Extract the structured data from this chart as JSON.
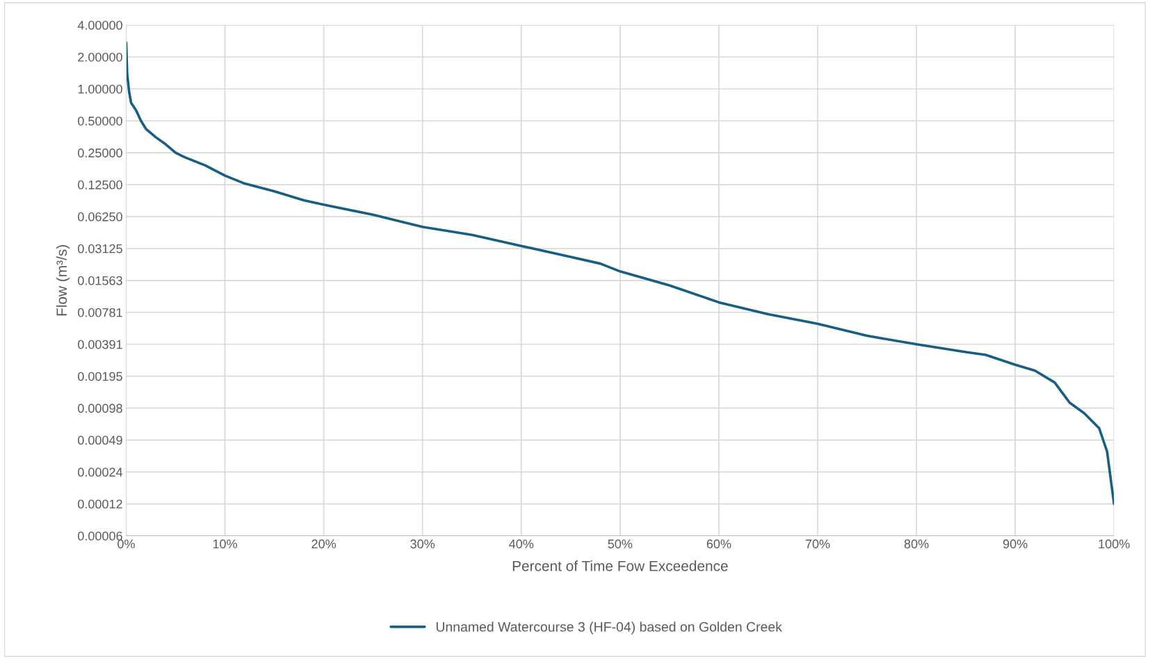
{
  "chart_data": {
    "type": "line",
    "xlabel": "Percent of Time Fow Exceedence",
    "ylabel": "Flow (m³/s)",
    "log": "y",
    "grid": true,
    "legend": "bottom",
    "marker": "none",
    "line_style": "solid",
    "xlim": [
      0,
      100
    ],
    "ylim": [
      6.103515625e-05,
      4
    ],
    "xticks": [
      {
        "value": 0,
        "label": "0%"
      },
      {
        "value": 10,
        "label": "10%"
      },
      {
        "value": 20,
        "label": "20%"
      },
      {
        "value": 30,
        "label": "30%"
      },
      {
        "value": 40,
        "label": "40%"
      },
      {
        "value": 50,
        "label": "50%"
      },
      {
        "value": 60,
        "label": "60%"
      },
      {
        "value": 70,
        "label": "70%"
      },
      {
        "value": 80,
        "label": "80%"
      },
      {
        "value": 90,
        "label": "90%"
      },
      {
        "value": 100,
        "label": "100%"
      }
    ],
    "yticks": [
      {
        "value": 6.103515625e-05,
        "label": "0.00006"
      },
      {
        "value": 0.0001220703125,
        "label": "0.00012"
      },
      {
        "value": 0.000244140625,
        "label": "0.00024"
      },
      {
        "value": 0.00048828125,
        "label": "0.00049"
      },
      {
        "value": 0.0009765625,
        "label": "0.00098"
      },
      {
        "value": 0.001953125,
        "label": "0.00195"
      },
      {
        "value": 0.00390625,
        "label": "0.00391"
      },
      {
        "value": 0.0078125,
        "label": "0.00781"
      },
      {
        "value": 0.015625,
        "label": "0.01563"
      },
      {
        "value": 0.03125,
        "label": "0.03125"
      },
      {
        "value": 0.0625,
        "label": "0.06250"
      },
      {
        "value": 0.125,
        "label": "0.12500"
      },
      {
        "value": 0.25,
        "label": "0.25000"
      },
      {
        "value": 0.5,
        "label": "0.50000"
      },
      {
        "value": 1,
        "label": "1.00000"
      },
      {
        "value": 2,
        "label": "2.00000"
      },
      {
        "value": 4,
        "label": "4.00000"
      }
    ],
    "series": [
      {
        "name": "Unnamed Watercourse 3 (HF-04) based on Golden Creek",
        "color": "#156082",
        "x": [
          0,
          0.1,
          0.3,
          0.5,
          1,
          1.5,
          2,
          3,
          4,
          5,
          6,
          8,
          10,
          12,
          15,
          18,
          20,
          25,
          30,
          35,
          40,
          45,
          48,
          50,
          55,
          60,
          65,
          70,
          75,
          80,
          85,
          87,
          90,
          92,
          94,
          95.5,
          97,
          98.5,
          99.3,
          100
        ],
        "values": [
          2.73,
          1.4,
          0.94,
          0.74,
          0.63,
          0.5,
          0.42,
          0.35,
          0.3,
          0.25,
          0.225,
          0.19,
          0.152,
          0.128,
          0.108,
          0.089,
          0.081,
          0.065,
          0.05,
          0.042,
          0.033,
          0.026,
          0.0225,
          0.019,
          0.014,
          0.0097,
          0.0075,
          0.0061,
          0.0047,
          0.0039,
          0.0033,
          0.0031,
          0.0025,
          0.0022,
          0.0017,
          0.0011,
          0.00087,
          0.00063,
          0.00038,
          0.000122
        ]
      }
    ]
  }
}
